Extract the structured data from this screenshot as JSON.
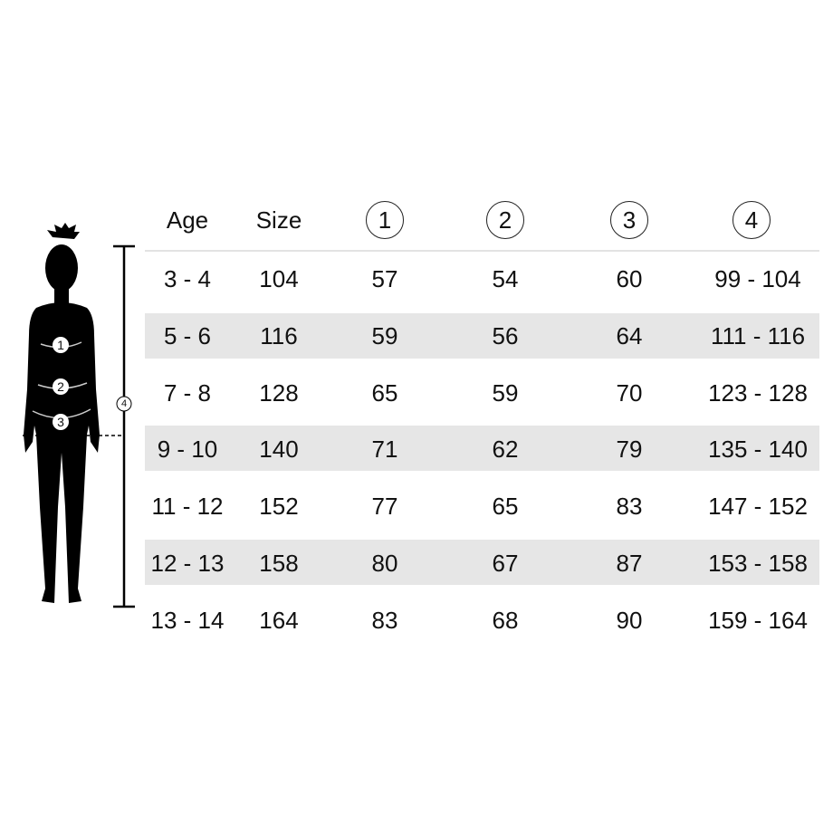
{
  "header": {
    "age": "Age",
    "size": "Size",
    "m1": "1",
    "m2": "2",
    "m3": "3",
    "m4": "4"
  },
  "figure": {
    "labels": [
      "1",
      "2",
      "3"
    ],
    "height_label": "4"
  },
  "rows": [
    [
      "3 - 4",
      "104",
      "57",
      "54",
      "60",
      "99 - 104"
    ],
    [
      "5 - 6",
      "116",
      "59",
      "56",
      "64",
      "111 - 116"
    ],
    [
      "7 - 8",
      "128",
      "65",
      "59",
      "70",
      "123 - 128"
    ],
    [
      "9 - 10",
      "140",
      "71",
      "62",
      "79",
      "135 - 140"
    ],
    [
      "11 - 12",
      "152",
      "77",
      "65",
      "83",
      "147 - 152"
    ],
    [
      "12 - 13",
      "158",
      "80",
      "67",
      "87",
      "153 - 158"
    ],
    [
      "13 - 14",
      "164",
      "83",
      "68",
      "90",
      "159 - 164"
    ]
  ],
  "colors": {
    "band": "#e6e6e6",
    "silhouette": "#000000"
  }
}
